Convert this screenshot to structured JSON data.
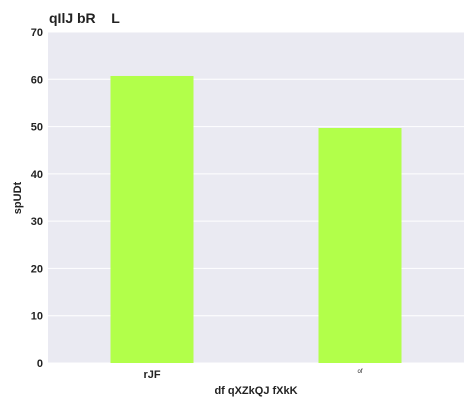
{
  "chart_data": {
    "type": "bar",
    "title": "qIlJ bR    L",
    "xlabel": "df qXZkQJ fXkK",
    "ylabel": "spUDt",
    "categories": [
      "rJF",
      "of"
    ],
    "series": [
      {
        "values": [
          60.7,
          49.7
        ]
      }
    ],
    "ylim": [
      0,
      70
    ],
    "yticks": [
      0,
      10,
      20,
      30,
      40,
      50,
      60,
      70
    ],
    "grid": true,
    "background_color": "#eaeaf2",
    "bar_color": "#b2ff4a"
  }
}
